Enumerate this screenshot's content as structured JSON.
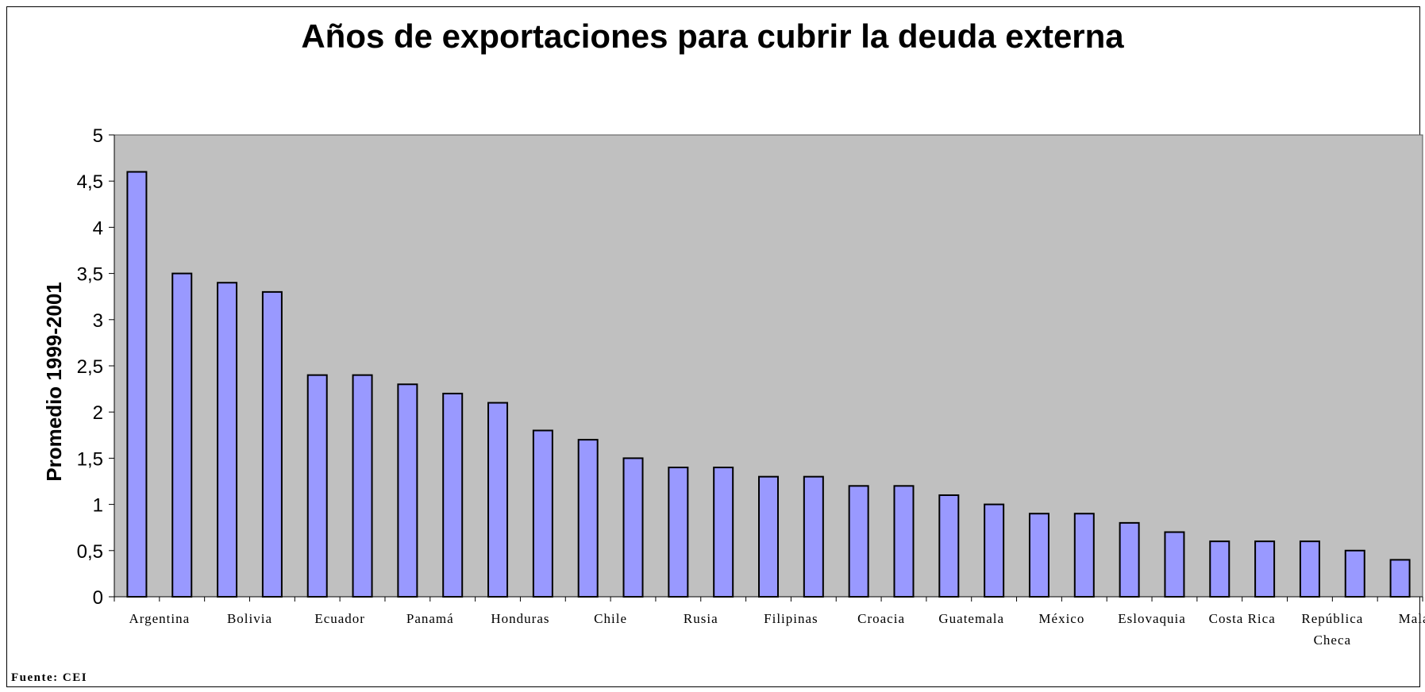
{
  "chart_data": {
    "type": "bar",
    "title": "Años de exportaciones para cubrir la deuda externa",
    "ylabel": "Promedio 1999-2001",
    "xlabel": "",
    "ylim": [
      0,
      5
    ],
    "yticks": [
      "0",
      "0,5",
      "1",
      "1,5",
      "2",
      "2,5",
      "3",
      "3,5",
      "4",
      "4,5",
      "5"
    ],
    "categories": [
      "Argentina",
      "",
      "Bolivia",
      "",
      "Ecuador",
      "",
      "Panamá",
      "",
      "Honduras",
      "",
      "Chile",
      "",
      "Rusia",
      "",
      "Filipinas",
      "",
      "Croacia",
      "",
      "Guatemala",
      "",
      "México",
      "",
      "Eslovaquia",
      "",
      "Costa Rica",
      "",
      "República Checa",
      "",
      "Malasia"
    ],
    "category_label_lines": [
      [
        "Argentina"
      ],
      [],
      [
        "Bolivia"
      ],
      [],
      [
        "Ecuador"
      ],
      [],
      [
        "Panamá"
      ],
      [],
      [
        "Honduras"
      ],
      [],
      [
        "Chile"
      ],
      [],
      [
        "Rusia"
      ],
      [],
      [
        "Filipinas"
      ],
      [],
      [
        "Croacia"
      ],
      [],
      [
        "Guatemala"
      ],
      [],
      [
        "México"
      ],
      [],
      [
        "Eslovaquia"
      ],
      [],
      [
        "Costa Rica"
      ],
      [],
      [
        "República",
        "Checa"
      ],
      [],
      [
        "Malasia"
      ]
    ],
    "values": [
      4.6,
      3.5,
      3.4,
      3.3,
      2.4,
      2.4,
      2.3,
      2.2,
      2.1,
      1.8,
      1.7,
      1.5,
      1.4,
      1.4,
      1.3,
      1.3,
      1.2,
      1.2,
      1.1,
      1.0,
      0.9,
      0.9,
      0.8,
      0.7,
      0.6,
      0.6,
      0.6,
      0.5,
      0.4
    ],
    "grid": false,
    "legend": "none",
    "colors": {
      "bar": "#9999ff",
      "plot_background": "#c0c0c0"
    }
  },
  "footer": {
    "source": "Fuente: CEI"
  }
}
